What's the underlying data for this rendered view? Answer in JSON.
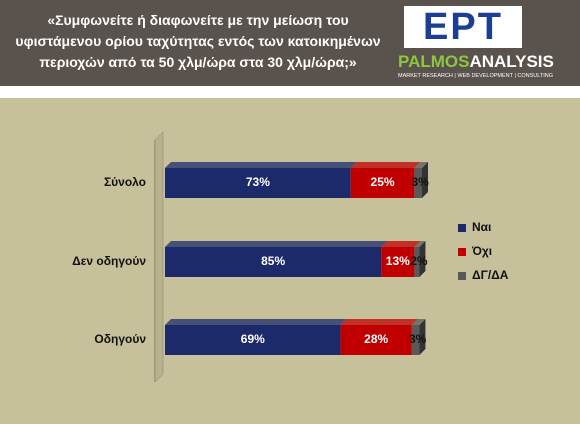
{
  "header": {
    "title": "«Συμφωνείτε ή διαφωνείτε με την μείωση του υφιστάμενου ορίου ταχύτητας εντός των κατοικημένων περιοχών από τα 50 χλμ/ώρα στα 30 χλμ/ώρα;»",
    "logo": "ΕΡΤ",
    "brand_bold": "PALMOS",
    "brand_rest": "ANALYSIS",
    "brand_tagline": "MARKET RESEARCH | WEB DEVELOPMENT | CONSULTING"
  },
  "chart_data": {
    "type": "stacked-barh",
    "categories": [
      "Σύνολο",
      "Δεν οδηγούν",
      "Οδηγούν"
    ],
    "series": [
      {
        "name": "Ναι",
        "color": "#1c2a6b",
        "values": [
          73,
          85,
          69
        ],
        "value_labels": [
          "73%",
          "85%",
          "69%"
        ]
      },
      {
        "name": "Όχι",
        "color": "#c00000",
        "values": [
          25,
          13,
          28
        ],
        "value_labels": [
          "25%",
          "13%",
          "28%"
        ]
      },
      {
        "name": "ΔΓ/ΔΑ",
        "color": "#595959",
        "values": [
          3,
          2,
          3
        ],
        "value_labels": [
          "3%",
          "2%",
          "3%"
        ]
      }
    ],
    "xlim": [
      0,
      101
    ],
    "legend": "right"
  }
}
